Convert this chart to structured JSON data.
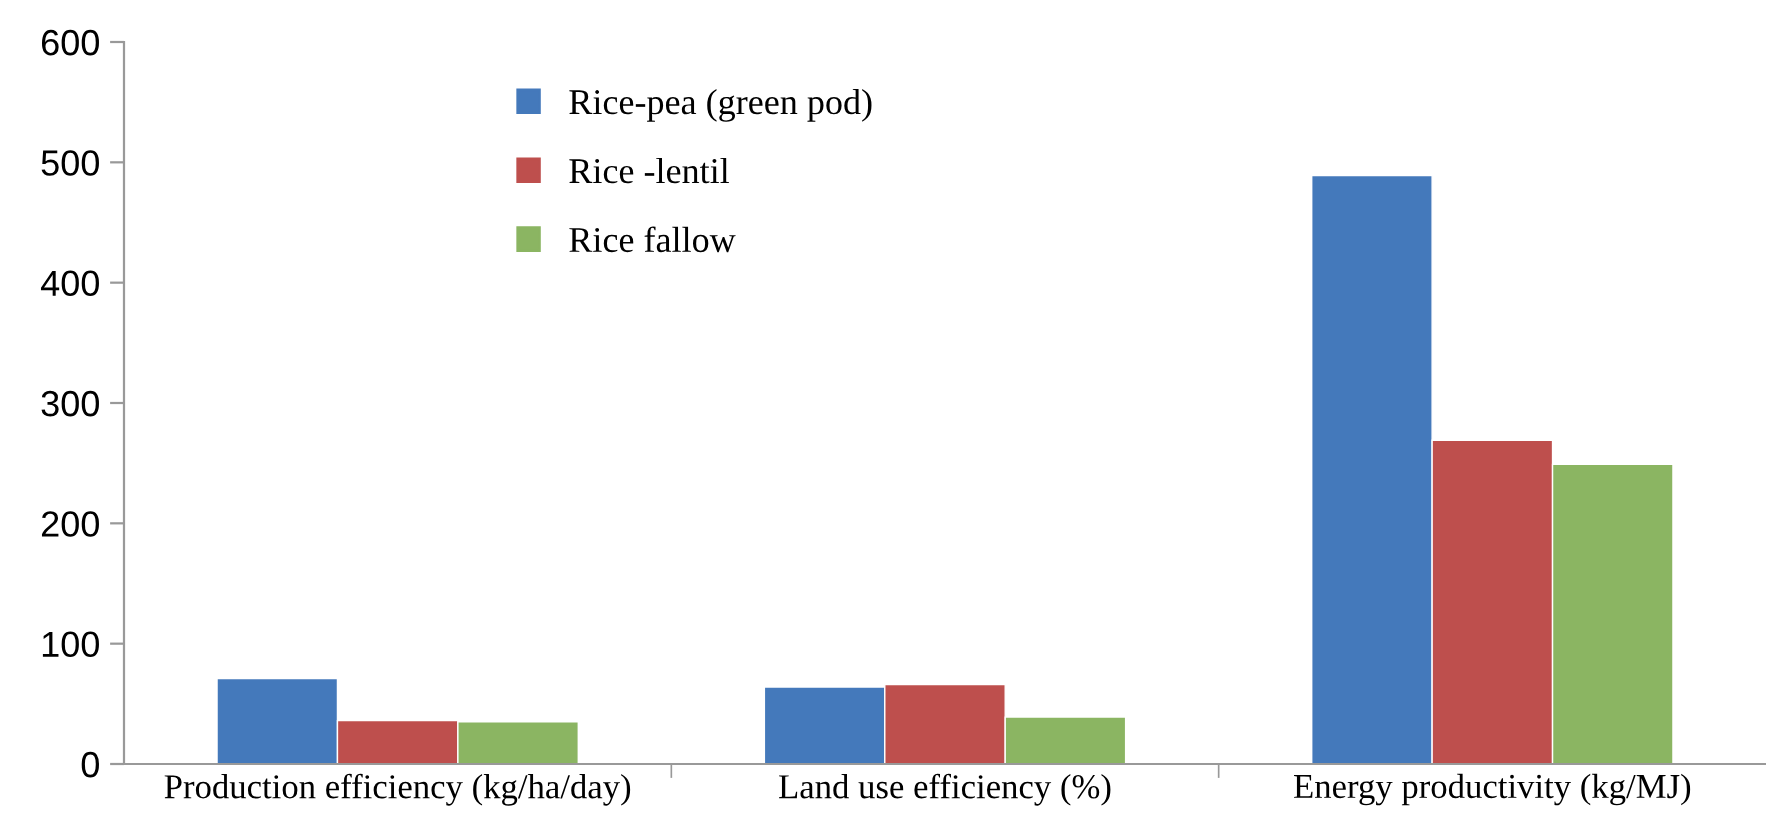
{
  "chart_data": {
    "type": "bar",
    "categories": [
      "Production efficiency (kg/ha/day)",
      "Land use efficiency (%)",
      "Energy productivity (kg/MJ)"
    ],
    "series": [
      {
        "name": "Rice-pea (green pod)",
        "color": "#4479bb",
        "values": [
          71,
          64,
          489
        ]
      },
      {
        "name": "Rice -lentil",
        "color": "#be4f4d",
        "values": [
          36,
          66,
          269
        ]
      },
      {
        "name": "Rice fallow",
        "color": "#8bb562",
        "values": [
          35,
          39,
          249
        ]
      }
    ],
    "ylim": [
      0,
      600
    ],
    "yticks": [
      0,
      100,
      200,
      300,
      400,
      500,
      600
    ],
    "grid": false,
    "legend": "top"
  }
}
